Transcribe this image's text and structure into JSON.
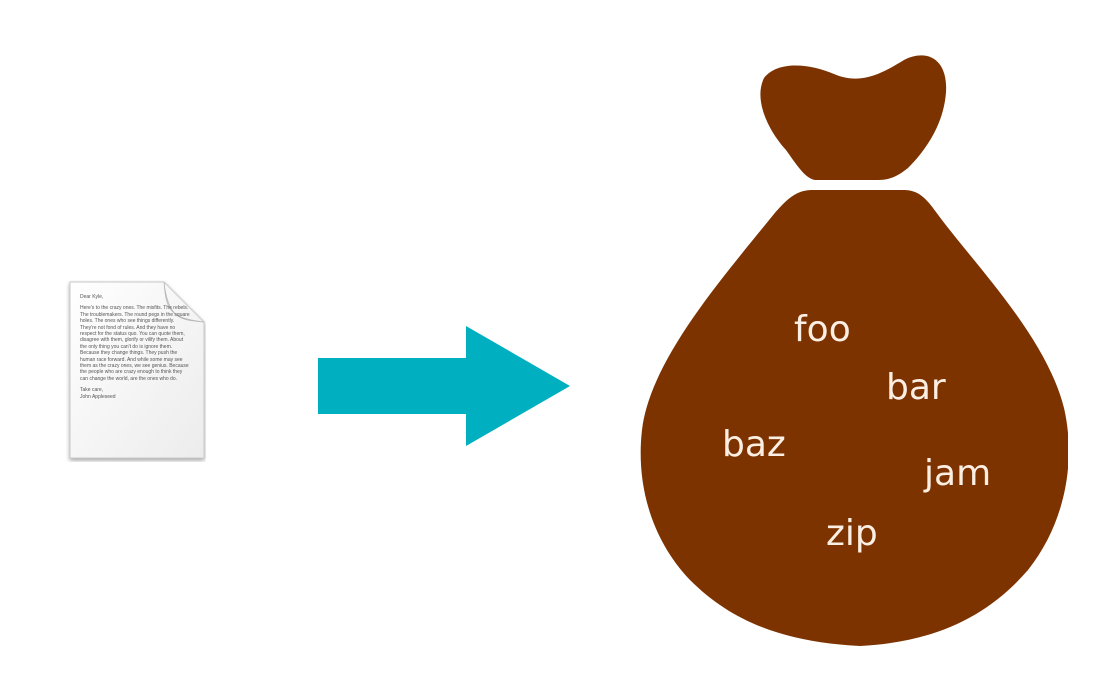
{
  "document": {
    "greeting": "Dear Kyle,",
    "body": "Here's to the crazy ones. The misfits. The rebels. The troublemakers. The round pegs in the square holes. The ones who see things differently. They're not fond of rules. And they have no respect for the status quo. You can quote them, disagree with them, glorify or vilify them. About the only thing you can't do is ignore them. Because they change things. They push the human race forward. And while some may see them as the crazy ones, we see genius. Because the people who are crazy enough to think they can change the world, are the ones who do.",
    "signoff": "Take care,",
    "signature": "John Appleseed",
    "icon": "document-icon"
  },
  "arrow": {
    "icon": "right-arrow-icon",
    "color": "#00b0c0"
  },
  "bag": {
    "icon": "money-bag-icon",
    "color": "#7d3300",
    "words": {
      "foo": "foo",
      "bar": "bar",
      "baz": "baz",
      "jam": "jam",
      "zip": "zip"
    }
  }
}
